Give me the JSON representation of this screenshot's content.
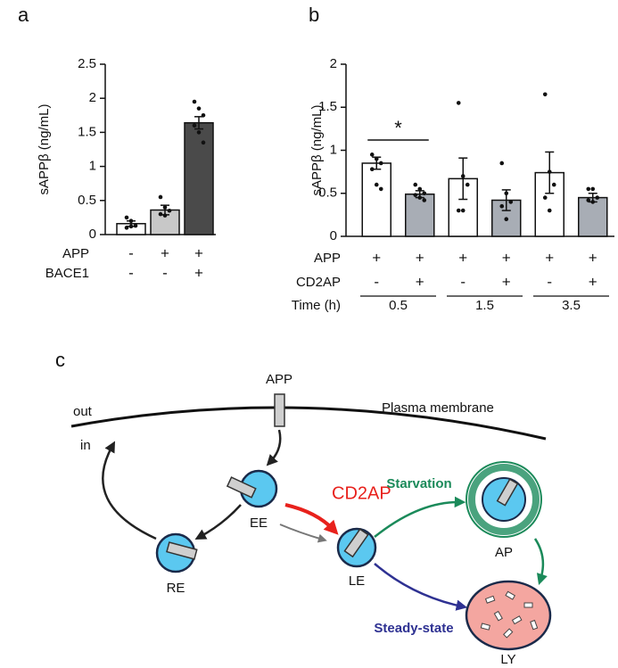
{
  "chart_data": [
    {
      "type": "bar",
      "panel_label": "a",
      "ylabel": "sAPPβ (ng/mL)",
      "categories": [
        null,
        null,
        null
      ],
      "values": [
        0.16,
        0.36,
        1.64
      ],
      "errors": [
        0.04,
        0.07,
        0.09
      ],
      "colors": [
        "#ffffff",
        "#c8c8c8",
        "#4a4a4a"
      ],
      "points": [
        [
          0.25,
          0.2,
          0.13,
          0.1,
          0.12
        ],
        [
          0.55,
          0.4,
          0.35,
          0.3,
          0.28
        ],
        [
          1.95,
          1.85,
          1.75,
          1.6,
          1.5,
          1.35
        ]
      ],
      "conditions": [
        {
          "name": "APP",
          "values": [
            "-",
            "+",
            "+"
          ]
        },
        {
          "name": "BACE1",
          "values": [
            "-",
            "-",
            "+"
          ]
        }
      ],
      "ylim": [
        0,
        2.5
      ],
      "yticks": [
        0,
        0.5,
        1,
        1.5,
        2,
        2.5
      ]
    },
    {
      "type": "bar",
      "panel_label": "b",
      "ylabel": "sAPPβ (ng/mL)",
      "categories": [
        null,
        null,
        null,
        null,
        null,
        null
      ],
      "values": [
        0.85,
        0.49,
        0.67,
        0.42,
        0.74,
        0.45
      ],
      "errors": [
        0.07,
        0.04,
        0.24,
        0.12,
        0.24,
        0.05
      ],
      "colors": [
        "#ffffff",
        "#a8adb5",
        "#ffffff",
        "#a8adb5",
        "#ffffff",
        "#a8adb5"
      ],
      "points": [
        [
          0.95,
          0.9,
          0.85,
          0.78,
          0.6,
          0.55
        ],
        [
          0.6,
          0.55,
          0.5,
          0.48,
          0.45,
          0.42
        ],
        [
          1.55,
          0.7,
          0.6,
          0.3,
          0.3
        ],
        [
          0.85,
          0.5,
          0.4,
          0.35,
          0.2
        ],
        [
          1.65,
          0.75,
          0.6,
          0.45,
          0.3
        ],
        [
          0.55,
          0.55,
          0.45,
          0.42,
          0.4
        ]
      ],
      "conditions": [
        {
          "name": "APP",
          "values": [
            "+",
            "+",
            "+",
            "+",
            "+",
            "+"
          ]
        },
        {
          "name": "CD2AP",
          "values": [
            "-",
            "+",
            "-",
            "+",
            "-",
            "+"
          ]
        }
      ],
      "time_label": "Time (h)",
      "time_groups": [
        "0.5",
        "1.5",
        "3.5"
      ],
      "annotation": "*",
      "ylim": [
        0,
        2
      ],
      "yticks": [
        0,
        0.5,
        1,
        1.5,
        2
      ]
    }
  ],
  "diagram": {
    "panel_label": "c",
    "app": "APP",
    "out": "out",
    "in": "in",
    "membrane": "Plasma membrane",
    "cd2ap": "CD2AP",
    "starvation": "Starvation",
    "steady_state": "Steady-state",
    "ee": "EE",
    "re": "RE",
    "le": "LE",
    "ap": "AP",
    "ly": "LY"
  }
}
